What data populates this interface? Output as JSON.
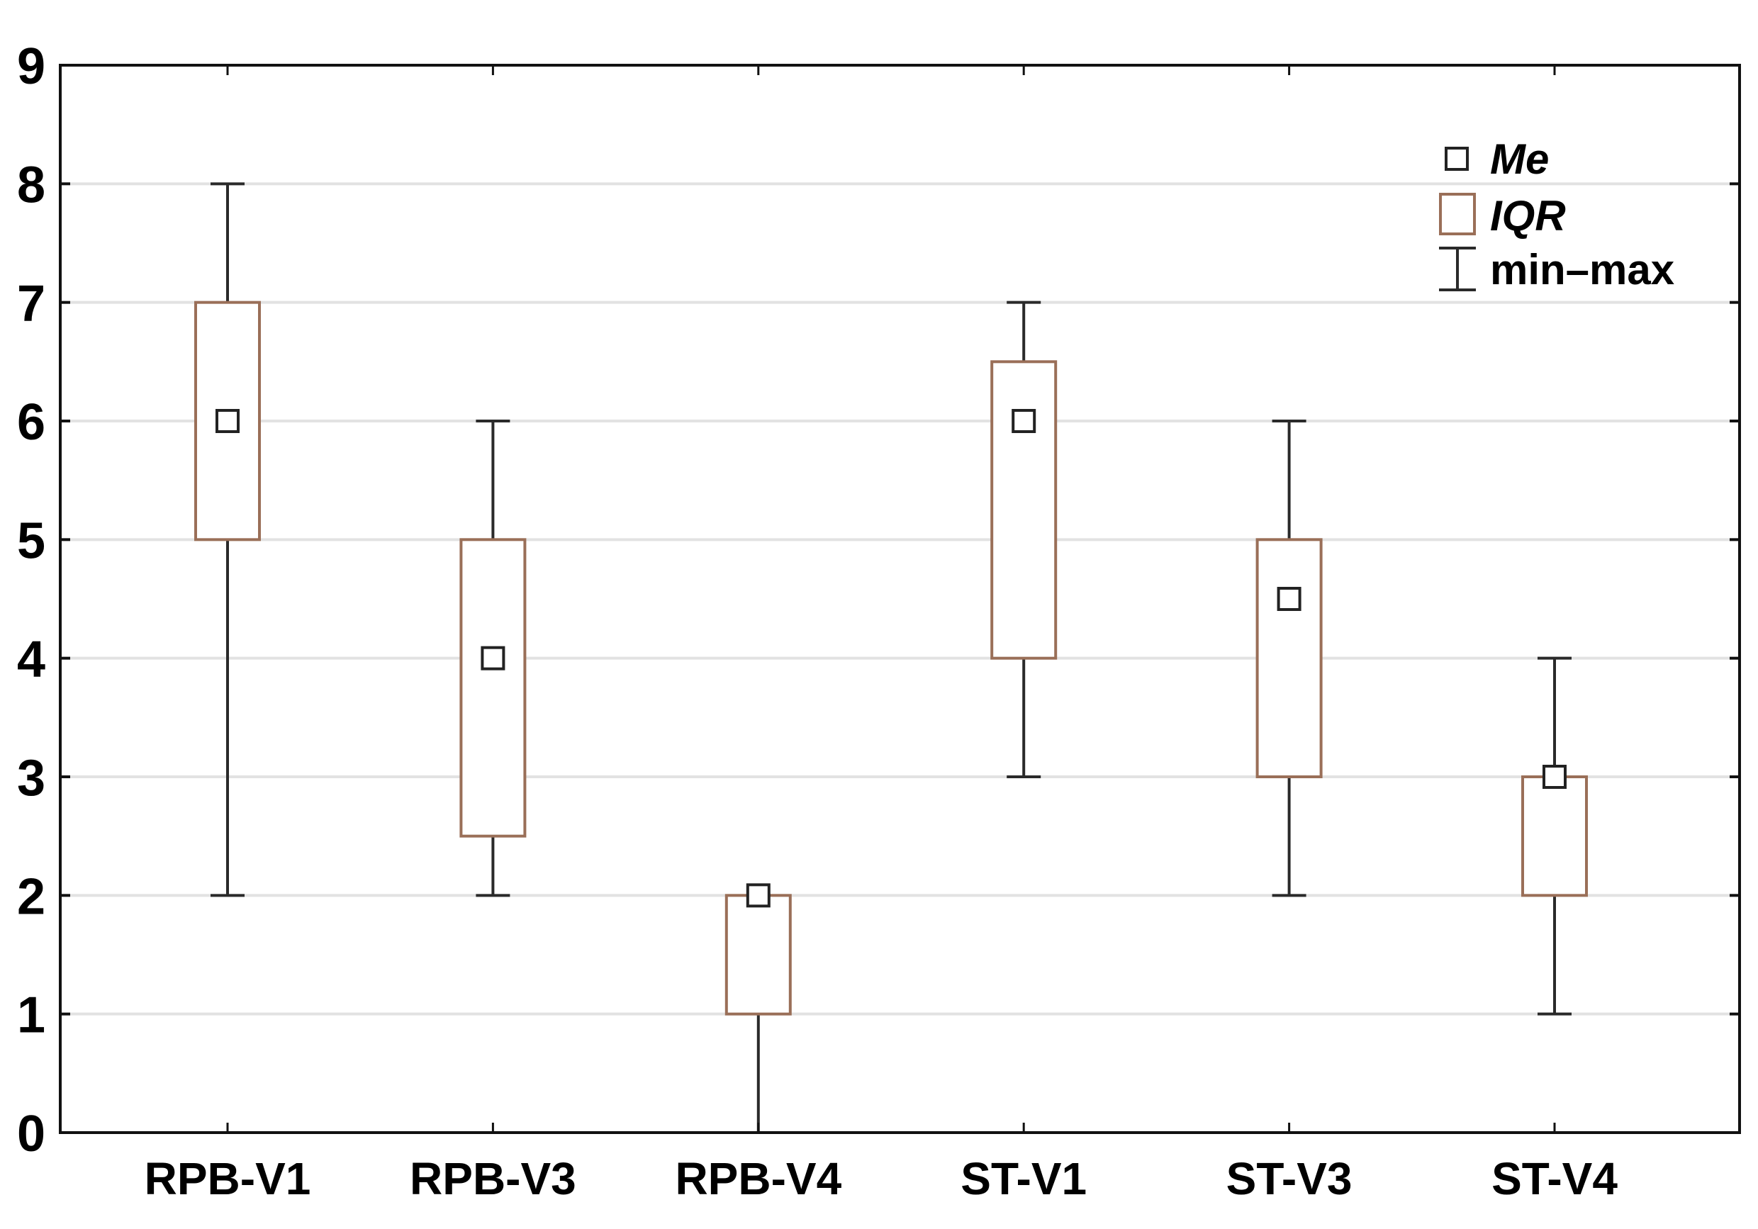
{
  "chart_data": {
    "type": "boxplot",
    "title": "",
    "xlabel": "",
    "ylabel": "",
    "ylim": [
      0,
      9
    ],
    "yticks": [
      0,
      1,
      2,
      3,
      4,
      5,
      6,
      7,
      8,
      9
    ],
    "grid": true,
    "categories": [
      "RPB-V1",
      "RPB-V3",
      "RPB-V4",
      "ST-V1",
      "ST-V3",
      "ST-V4"
    ],
    "series": [
      {
        "name": "RPB-V1",
        "min": 2,
        "q1": 5,
        "median": 6,
        "q3": 7,
        "max": 8
      },
      {
        "name": "RPB-V3",
        "min": 2,
        "q1": 2.5,
        "median": 4,
        "q3": 5,
        "max": 6
      },
      {
        "name": "RPB-V4",
        "min": 0,
        "q1": 1,
        "median": 2,
        "q3": 2,
        "max": 2
      },
      {
        "name": "ST-V1",
        "min": 3,
        "q1": 4,
        "median": 6,
        "q3": 6.5,
        "max": 7
      },
      {
        "name": "ST-V3",
        "min": 2,
        "q1": 3,
        "median": 4.5,
        "q3": 5,
        "max": 6
      },
      {
        "name": "ST-V4",
        "min": 1,
        "q1": 2,
        "median": 3,
        "q3": 3,
        "max": 4
      }
    ],
    "legend": {
      "placement": "top-right",
      "entries": [
        {
          "label": "Me",
          "marker": "square",
          "italic": true
        },
        {
          "label": "IQR",
          "marker": "box",
          "italic": true
        },
        {
          "label": "min–max",
          "marker": "whisker",
          "italic": false
        }
      ]
    },
    "colors": {
      "median_marker": "#222222",
      "iqr_box": "#9a6f58",
      "whisker": "#2a2a2a",
      "grid": "#e2e2e2",
      "axis": "#111111"
    }
  }
}
